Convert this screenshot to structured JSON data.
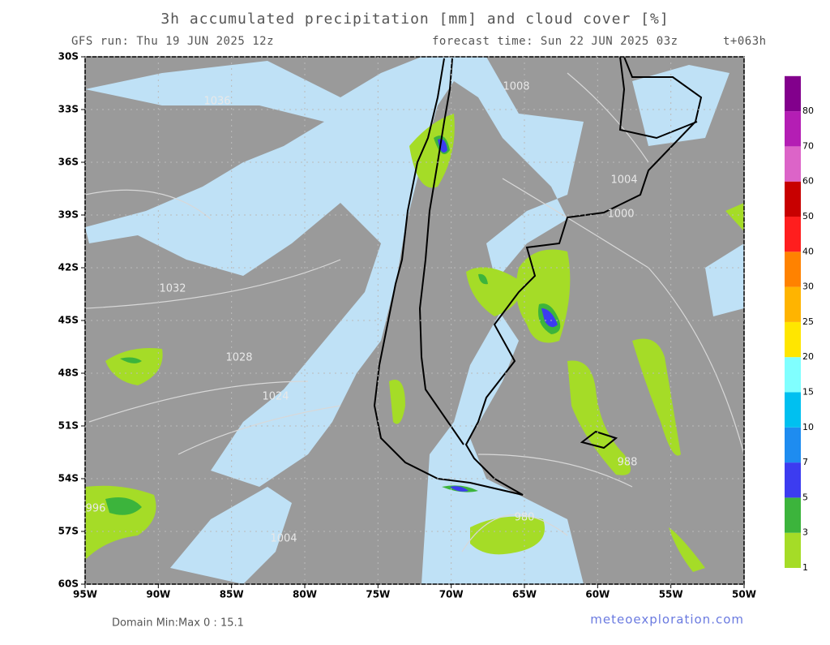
{
  "map": {
    "title": "3h accumulated precipitation [mm] and cloud cover [%]",
    "run": "GFS run: Thu 19 JUN 2025 12z",
    "forecast_time": "forecast time: Sun 22 JUN 2025 03z",
    "lead": "t+063h",
    "lon_range": [
      -95,
      -50
    ],
    "lat_range": [
      -30,
      -60
    ],
    "lon_ticks": [
      {
        "value": -95,
        "label": "95W"
      },
      {
        "value": -90,
        "label": "90W"
      },
      {
        "value": -85,
        "label": "85W"
      },
      {
        "value": -80,
        "label": "80W"
      },
      {
        "value": -75,
        "label": "75W"
      },
      {
        "value": -70,
        "label": "70W"
      },
      {
        "value": -65,
        "label": "65W"
      },
      {
        "value": -60,
        "label": "60W"
      },
      {
        "value": -55,
        "label": "55W"
      },
      {
        "value": -50,
        "label": "50W"
      }
    ],
    "lat_ticks": [
      {
        "value": -30,
        "label": "30S"
      },
      {
        "value": -33,
        "label": "33S"
      },
      {
        "value": -36,
        "label": "36S"
      },
      {
        "value": -39,
        "label": "39S"
      },
      {
        "value": -42,
        "label": "42S"
      },
      {
        "value": -45,
        "label": "45S"
      },
      {
        "value": -48,
        "label": "48S"
      },
      {
        "value": -51,
        "label": "51S"
      },
      {
        "value": -54,
        "label": "54S"
      },
      {
        "value": -57,
        "label": "57S"
      },
      {
        "value": -60,
        "label": "60S"
      }
    ],
    "colorbar": {
      "levels": [
        1,
        3,
        5,
        7,
        10,
        15,
        20,
        25,
        30,
        40,
        50,
        60,
        70,
        80
      ],
      "colors": [
        "#a5dc27",
        "#3cb43c",
        "#3c3cf0",
        "#1e8cf0",
        "#00c0f0",
        "#80ffff",
        "#ffe600",
        "#ffb400",
        "#ff8200",
        "#ff1e1e",
        "#c80000",
        "#dc64c8",
        "#b41eb4",
        "#82008c"
      ]
    },
    "isobar_labels": [
      "1036",
      "1032",
      "1028",
      "1024",
      "1008",
      "1004",
      "1000",
      "988",
      "996",
      "980",
      "1004"
    ],
    "domain_minmax": "Domain Min:Max 0 : 15.1",
    "credit": "meteoexploration.com"
  }
}
